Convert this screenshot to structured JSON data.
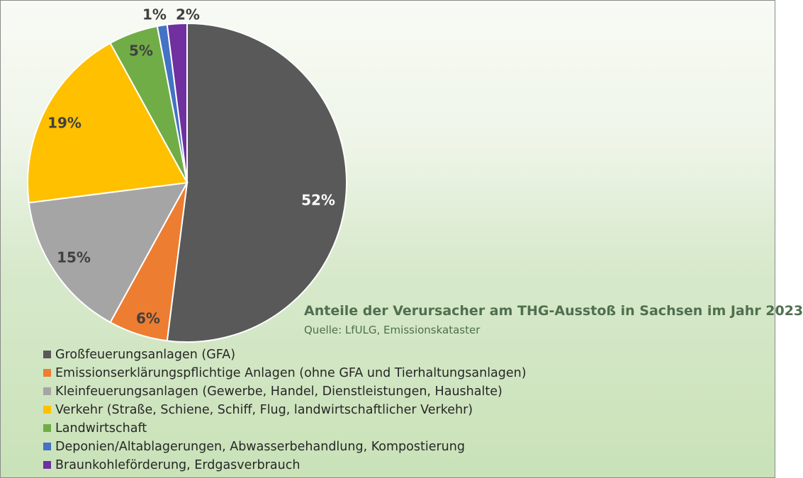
{
  "chart_data": {
    "type": "pie",
    "title": "Anteile der Verursacher am THG-Ausstoß in Sachsen im Jahr 2023",
    "subtitle": "Quelle: LfULG, Emissionskataster",
    "legend_position": "bottom-left",
    "slices": [
      {
        "label": "Großfeuerungsanlagen (GFA)",
        "value": 52,
        "display": "52%",
        "color": "#595959",
        "label_color": "#ffffff"
      },
      {
        "label": "Emissionserklärungspflichtige Anlagen (ohne GFA und Tierhaltungsanlagen)",
        "value": 6,
        "display": "6%",
        "color": "#ed7d31",
        "label_color": "#404040"
      },
      {
        "label": "Kleinfeuerungsanlagen (Gewerbe, Handel, Dienstleistungen, Haushalte)",
        "value": 15,
        "display": "15%",
        "color": "#a5a5a5",
        "label_color": "#404040"
      },
      {
        "label": "Verkehr (Straße, Schiene, Schiff, Flug, landwirtschaftlicher Verkehr)",
        "value": 19,
        "display": "19%",
        "color": "#ffc000",
        "label_color": "#404040"
      },
      {
        "label": "Landwirtschaft",
        "value": 5,
        "display": "5%",
        "color": "#70ad47",
        "label_color": "#404040"
      },
      {
        "label": "Deponien/Altablagerungen, Abwasserbehandlung, Kompostierung",
        "value": 1,
        "display": "1%",
        "color": "#4472c4",
        "label_color": "#404040"
      },
      {
        "label": "Braunkohleförderung, Erdgasverbrauch",
        "value": 2,
        "display": "2%",
        "color": "#7030a0",
        "label_color": "#404040"
      }
    ]
  }
}
